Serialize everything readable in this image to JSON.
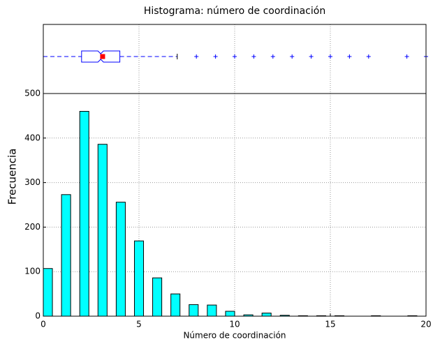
{
  "chart_data": {
    "type": "histogram",
    "title": "Histograma: número de coordinación",
    "xlabel": "Número de coordinación",
    "ylabel": "Frecuencia",
    "bins": [
      0,
      0.952,
      1.905,
      2.857,
      3.81,
      4.762,
      5.714,
      6.667,
      7.619,
      8.571,
      9.524,
      10.476,
      11.429,
      12.381,
      13.333,
      14.286,
      15.238,
      16.19,
      17.143,
      18.095,
      19.048,
      20
    ],
    "values": [
      107,
      273,
      460,
      386,
      256,
      169,
      86,
      50,
      26,
      25,
      11,
      3,
      7,
      2,
      1,
      1,
      1,
      0,
      1,
      0,
      1
    ],
    "color": "#00ffff",
    "xlim": [
      0,
      20
    ],
    "xticks": [
      0,
      5,
      10,
      15,
      20
    ],
    "ylim": [
      0,
      500
    ],
    "yticks": [
      0,
      100,
      200,
      300,
      400,
      500
    ],
    "grid": true,
    "boxplot": {
      "whislo": 0,
      "q1": 2,
      "median": 3,
      "q3": 4,
      "whishi": 7,
      "mean": 3.1,
      "fliers": [
        8,
        9,
        10,
        11,
        12,
        13,
        14,
        15,
        16,
        17,
        19,
        20
      ],
      "color": "#0000ff",
      "mean_color": "#ff0000"
    }
  }
}
